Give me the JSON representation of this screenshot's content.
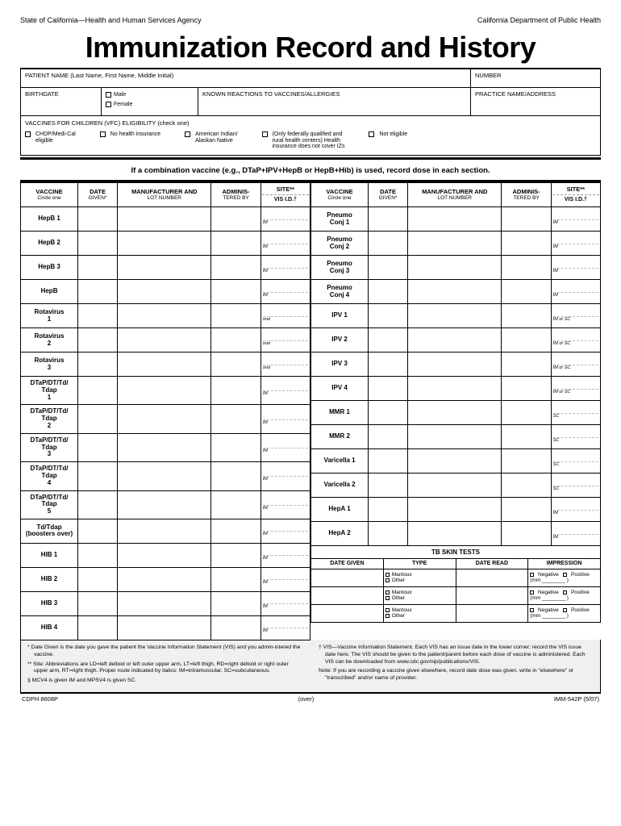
{
  "header": {
    "left": "State of California—Health and Human Services Agency",
    "right": "California Department of Public Health"
  },
  "title": "Immunization Record and History",
  "info": {
    "patient_label": "PATIENT NAME (Last Name, First Name, Middle Initial)",
    "number_label": "NUMBER",
    "birthdate_label": "BIRTHDATE",
    "male": "Male",
    "female": "Female",
    "reactions_label": "KNOWN REACTIONS TO VACCINES/ALLERGIES",
    "practice_label": "PRACTICE NAME/ADDRESS",
    "vfc_label": "VACCINES FOR CHILDREN (VFC) ELIGIBILITY (check one)",
    "vfc_opts": [
      {
        "l1": "CHDP/Medi-Cal",
        "l2": "eligible"
      },
      {
        "l1": "No health insurance",
        "l2": ""
      },
      {
        "l1": "American Indian/",
        "l2": "Alaskan Native"
      },
      {
        "l1": "(Only federally qualified and",
        "l2": "rural health centers) Health",
        "l3": "insurance does not cover IZs"
      },
      {
        "l1": "Not eligible",
        "l2": ""
      }
    ]
  },
  "subheader": "If a combination vaccine (e.g., DTaP+IPV+HepB or HepB+Hib) is used, record dose in each section.",
  "cols": {
    "vaccine": "VACCINE",
    "vaccine_sub": "Circle one",
    "date": "DATE",
    "date_sub": "GIVEN*",
    "mfr": "MANUFACTURER AND",
    "mfr_sub": "LOT NUMBER",
    "admin": "ADMINIS-",
    "admin_sub": "TERED BY",
    "site": "SITE**",
    "vis": "VIS I.D.†"
  },
  "left_rows": [
    {
      "name": "HepB 1",
      "site": "IM"
    },
    {
      "name": "HepB 2",
      "site": "IM"
    },
    {
      "name": "HepB 3",
      "site": "IM"
    },
    {
      "name": "HepB",
      "site": "IM"
    },
    {
      "name": "Rotavirus",
      "sub": "1",
      "site": "oral"
    },
    {
      "name": "Rotavirus",
      "sub": "2",
      "site": "oral"
    },
    {
      "name": "Rotavirus",
      "sub": "3",
      "site": "oral"
    },
    {
      "name": "DTaP/DT/Td/",
      "sub": "Tdap\n1",
      "site": "IM"
    },
    {
      "name": "DTaP/DT/Td/",
      "sub": "Tdap\n2",
      "site": "IM"
    },
    {
      "name": "DTaP/DT/Td/",
      "sub": "Tdap\n3",
      "site": "IM"
    },
    {
      "name": "DTaP/DT/Td/",
      "sub": "Tdap\n4",
      "site": "IM"
    },
    {
      "name": "DTaP/DT/Td/",
      "sub": "Tdap\n5",
      "site": "IM"
    },
    {
      "name": "Td/Tdap",
      "sub": "(boosters over)",
      "site": "IM"
    },
    {
      "name": "HIB 1",
      "site": "IM"
    },
    {
      "name": "HIB 2",
      "site": "IM"
    },
    {
      "name": "HIB 3",
      "site": "IM"
    },
    {
      "name": "HIB 4",
      "site": "IM"
    }
  ],
  "right_rows": [
    {
      "name": "Pneumo",
      "sub": "Conj 1",
      "site": "IM"
    },
    {
      "name": "Pneumo",
      "sub": "Conj 2",
      "site": "IM"
    },
    {
      "name": "Pneumo",
      "sub": "Conj 3",
      "site": "IM"
    },
    {
      "name": "Pneumo",
      "sub": "Conj 4",
      "site": "IM"
    },
    {
      "name": "IPV 1",
      "site": "IM or SC"
    },
    {
      "name": "IPV 2",
      "site": "IM or SC"
    },
    {
      "name": "IPV 3",
      "site": "IM or SC"
    },
    {
      "name": "IPV 4",
      "site": "IM or SC"
    },
    {
      "name": "MMR 1",
      "site": "SC"
    },
    {
      "name": "MMR 2",
      "site": "SC"
    },
    {
      "name": "Varicella 1",
      "site": "SC"
    },
    {
      "name": "Varicella 2",
      "site": "SC"
    },
    {
      "name": "HepA 1",
      "site": "IM"
    },
    {
      "name": "HepA 2",
      "site": "IM"
    }
  ],
  "tb": {
    "title": "TB SKIN TESTS",
    "cols": {
      "dg": "DATE GIVEN",
      "type": "TYPE",
      "dr": "DATE READ",
      "imp": "IMPRESSION"
    },
    "type_opts": {
      "m": "Mantoux",
      "o": "Other"
    },
    "imp_opts": {
      "neg": "Negative",
      "pos": "Positive",
      "mm": "(mm"
    }
  },
  "footnotes": {
    "f1": "* Date Given is the date you gave the patient the Vaccine Information Statement (VIS) and you admin-istered the vaccine.",
    "f2": "** Site: Abbreviations are LD=left deltoid or left outer upper arm, LT=left thigh, RD=right deltoid or right outer upper arm, RT=right thigh. Proper route indicated by italics: IM=intramuscular, SC=subcutaneous.",
    "f3": "§ MCV4 is given IM and MPSV4 is given SC.",
    "f4": "† VIS—Vaccine Information Statement. Each VIS has an issue date in the lower corner; record the VIS issue date here. The VIS should be given to the patient/parent before each dose of vaccine is administered. Each VIS can be downloaded from www.cdc.gov/nip/publications/VIS.",
    "f5": "Note: If you are recording a vaccine given elsewhere, record date dose was given, write in \"elsewhere\" or \"transcribed\" and/or name of provider."
  },
  "bottom": {
    "left": "CDPH 8608P",
    "mid": "(over)",
    "right": "IMM-542P (5/07)"
  }
}
